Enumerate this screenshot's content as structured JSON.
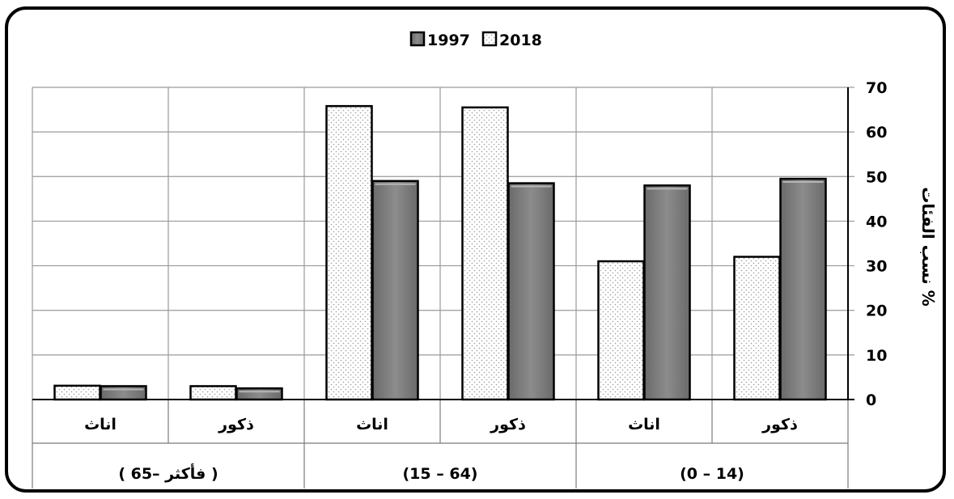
{
  "chart_data": {
    "type": "bar",
    "ylabel": "نسب الفئات %",
    "ylim": [
      0,
      70
    ],
    "yticks": [
      0,
      10,
      20,
      30,
      40,
      50,
      60,
      70
    ],
    "grid": true,
    "legend_position": "top-center",
    "categories": [
      "ذكور",
      "اناث",
      "ذكور",
      "اناث",
      "ذكور",
      "اناث"
    ],
    "groups": [
      "(0 – 14)",
      "(15 – 64)",
      "( 65– فأكثر )"
    ],
    "series": [
      {
        "name": "2018",
        "values": [
          32,
          31,
          65.5,
          65.8,
          3,
          3.1
        ],
        "color": "#ffffff",
        "pattern": "dotted"
      },
      {
        "name": "1997",
        "values": [
          49.5,
          48,
          48.5,
          49,
          2.5,
          3
        ],
        "color": "#7a7a7a"
      }
    ],
    "legend": [
      "1997",
      "2018"
    ]
  }
}
